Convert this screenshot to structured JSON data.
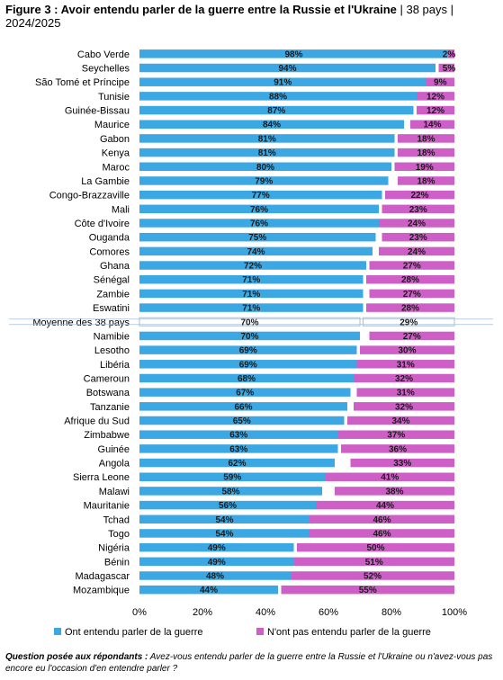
{
  "title": {
    "bold": "Figure 3 : Avoir entendu parler de la guerre entre la Russie et l'Ukraine",
    "sep1": " | ",
    "subtitle1": "38 pays",
    "sep2": " | ",
    "subtitle2": "2024/2025"
  },
  "footnote": {
    "label": "Question posée aux répondants :",
    "text": " Avez-vous entendu parler de la guerre entre la Russie et l'Ukraine ou n'avez-vous pas encore eu l'occasion d'en entendre parler ?"
  },
  "colors": {
    "heard": "#3ba7e3",
    "not_heard": "#cd5fc7",
    "average_border": "#a8bfd6"
  },
  "chart_data": {
    "type": "bar",
    "orientation": "horizontal",
    "stacked": true,
    "categories": [
      "Cabo Verde",
      "Seychelles",
      "São Tomé et Príncipe",
      "Tunisie",
      "Guinée-Bissau",
      "Maurice",
      "Gabon",
      "Kenya",
      "Maroc",
      "La Gambie",
      "Congo-Brazzaville",
      "Mali",
      "Côte d'Ivoire",
      "Ouganda",
      "Comores",
      "Ghana",
      "Sénégal",
      "Zambie",
      "Eswatini",
      "Moyenne des 38 pays",
      "Namibie",
      "Lesotho",
      "Libéria",
      "Cameroun",
      "Botswana",
      "Tanzanie",
      "Afrique du Sud",
      "Zimbabwe",
      "Guinée",
      "Angola",
      "Sierra Leone",
      "Malawi",
      "Mauritanie",
      "Tchad",
      "Togo",
      "Nigéria",
      "Bénin",
      "Madagascar",
      "Mozambique"
    ],
    "highlight_category": "Moyenne des 38 pays",
    "series": [
      {
        "name": "Ont entendu parler de la guerre",
        "values": [
          98,
          94,
          91,
          88,
          87,
          84,
          81,
          81,
          80,
          79,
          77,
          76,
          76,
          75,
          74,
          72,
          71,
          71,
          71,
          70,
          70,
          69,
          69,
          68,
          67,
          66,
          65,
          63,
          63,
          62,
          59,
          58,
          56,
          54,
          54,
          49,
          49,
          48,
          44
        ]
      },
      {
        "name": "N'ont pas entendu parler de la guerre",
        "values": [
          2,
          5,
          9,
          12,
          12,
          14,
          18,
          18,
          19,
          18,
          22,
          23,
          24,
          23,
          24,
          27,
          28,
          27,
          28,
          29,
          27,
          30,
          31,
          32,
          31,
          32,
          34,
          37,
          36,
          33,
          41,
          38,
          44,
          46,
          46,
          50,
          51,
          52,
          55
        ]
      }
    ],
    "xlim": [
      0,
      100
    ],
    "xticks": [
      "0%",
      "20%",
      "40%",
      "60%",
      "80%",
      "100%"
    ],
    "value_suffix": "%",
    "legend_position": "bottom",
    "grid": false
  }
}
